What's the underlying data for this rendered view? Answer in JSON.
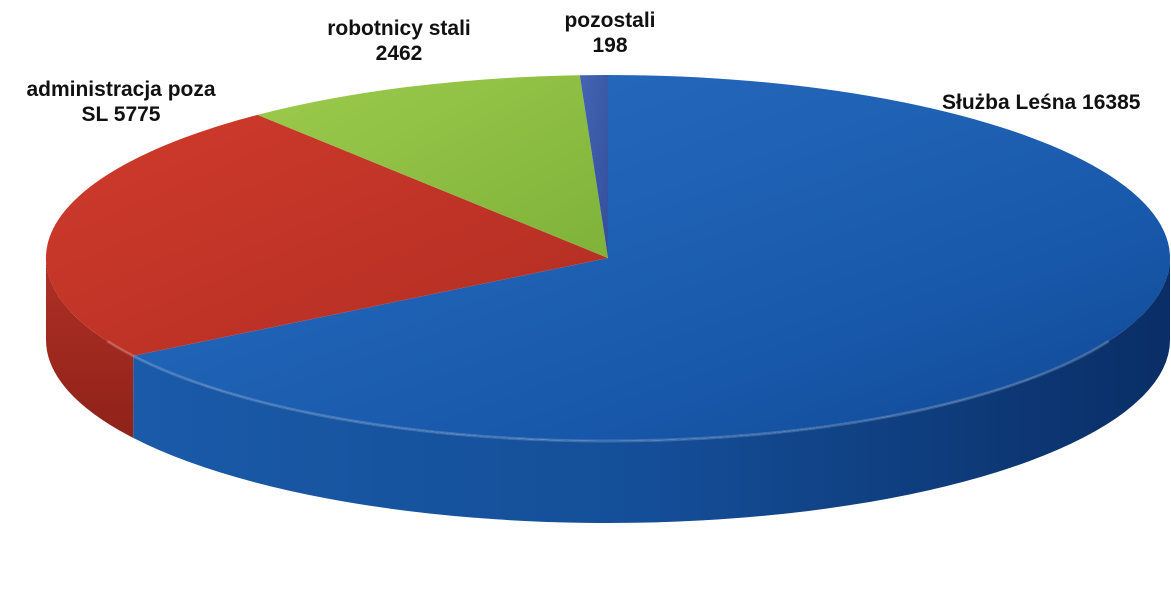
{
  "chart_data": {
    "type": "pie",
    "title": "",
    "slices": [
      {
        "name": "Służba Leśna",
        "value": 16385,
        "label_line1": "Służba Leśna 16385",
        "label_line2": "",
        "color": "#1c5fb0"
      },
      {
        "name": "administracja poza SL",
        "value": 5775,
        "label_line1": "administracja poza",
        "label_line2": "SL  5775",
        "color": "#c9372a"
      },
      {
        "name": "robotnicy stali",
        "value": 2462,
        "label_line1": "robotnicy stali",
        "label_line2": "2462",
        "color": "#8dc040"
      },
      {
        "name": "pozostali",
        "value": 198,
        "label_line1": "pozostali",
        "label_line2": "198",
        "color": "#3a5aa8"
      }
    ],
    "legend": "none",
    "style": "3d"
  }
}
